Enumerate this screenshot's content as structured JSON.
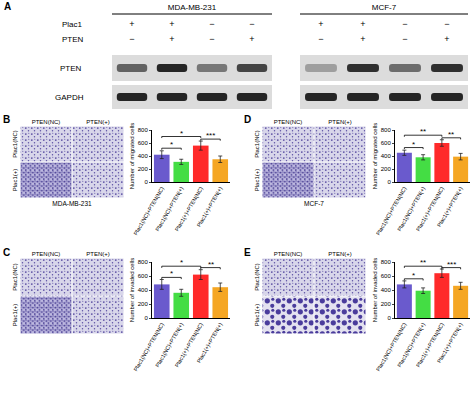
{
  "blot": {
    "panel": "A",
    "row_labels": [
      "Plac1",
      "PTEN"
    ],
    "band_labels": [
      "PTEN",
      "GAPDH"
    ],
    "groups": [
      {
        "name": "MDA-MB-231",
        "Plac1": [
          "+",
          "+",
          "−",
          "−"
        ],
        "PTEN": [
          "−",
          "+",
          "−",
          "+"
        ],
        "PTEN_band": [
          0.6,
          0.9,
          0.5,
          0.75
        ],
        "GAPDH_band": [
          0.9,
          0.9,
          0.9,
          0.9
        ]
      },
      {
        "name": "MCF-7",
        "Plac1": [
          "+",
          "+",
          "−",
          "−"
        ],
        "PTEN": [
          "−",
          "+",
          "−",
          "+"
        ],
        "PTEN_band": [
          0.3,
          0.85,
          0.55,
          0.85
        ],
        "GAPDH_band": [
          0.9,
          0.9,
          0.9,
          0.9
        ]
      }
    ]
  },
  "chart_data": [
    {
      "type": "bar",
      "panel": "B",
      "y_label": "Number of migrated cells",
      "categories": [
        "Plac1(NC)+PTEN(NC)",
        "Plac1(NC)+PTEN(+)",
        "Plac1(+)+PTEN(NC)",
        "Plac1(+)+PTEN(+)"
      ],
      "values": [
        420,
        310,
        560,
        350
      ],
      "errors": [
        60,
        40,
        70,
        50
      ],
      "colors": [
        "#6a5acd",
        "#44dd44",
        "#ff2a2a",
        "#f5a623"
      ],
      "ylim": [
        0,
        800
      ],
      "yticks": [
        0,
        200,
        400,
        600,
        800
      ],
      "significance": [
        {
          "from": 0,
          "to": 1,
          "label": "*",
          "y": 520
        },
        {
          "from": 0,
          "to": 2,
          "label": "*",
          "y": 700
        },
        {
          "from": 2,
          "to": 3,
          "label": "***",
          "y": 660
        }
      ],
      "images": {
        "columns": [
          "PTEN(NC)",
          "PTEN(+)"
        ],
        "rows": [
          "Plac1(NC)",
          "Plac1(+)"
        ],
        "cell_line": "MDA-MB-231"
      }
    },
    {
      "type": "bar",
      "panel": "C",
      "y_label": "Number of invaded cells",
      "categories": [
        "Plac1(NC)+PTEN(NC)",
        "Plac1(NC)+PTEN(+)",
        "Plac1(+)+PTEN(NC)",
        "Plac1(+)+PTEN(+)"
      ],
      "values": [
        480,
        360,
        620,
        440
      ],
      "errors": [
        70,
        50,
        70,
        60
      ],
      "colors": [
        "#6a5acd",
        "#44dd44",
        "#ff2a2a",
        "#f5a623"
      ],
      "ylim": [
        0,
        800
      ],
      "yticks": [
        0,
        200,
        400,
        600,
        800
      ],
      "significance": [
        {
          "from": 0,
          "to": 1,
          "label": "*",
          "y": 580
        },
        {
          "from": 0,
          "to": 2,
          "label": "*",
          "y": 740
        },
        {
          "from": 2,
          "to": 3,
          "label": "**",
          "y": 720
        }
      ],
      "images": {
        "columns": [
          "PTEN(NC)",
          "PTEN(+)"
        ],
        "rows": [
          "Plac1(NC)",
          "Plac1(+)"
        ]
      }
    },
    {
      "type": "bar",
      "panel": "D",
      "y_label": "Number of migrated cells",
      "categories": [
        "Plac1(NC)+PTEN(NC)",
        "Plac1(NC)+PTEN(+)",
        "Plac1(+)+PTEN(NC)",
        "Plac1(+)+PTEN(+)"
      ],
      "values": [
        450,
        380,
        600,
        390
      ],
      "errors": [
        40,
        40,
        50,
        50
      ],
      "colors": [
        "#6a5acd",
        "#44dd44",
        "#ff2a2a",
        "#f5a623"
      ],
      "ylim": [
        0,
        800
      ],
      "yticks": [
        0,
        200,
        400,
        600,
        800
      ],
      "significance": [
        {
          "from": 0,
          "to": 1,
          "label": "*",
          "y": 530
        },
        {
          "from": 0,
          "to": 2,
          "label": "**",
          "y": 720
        },
        {
          "from": 2,
          "to": 3,
          "label": "**",
          "y": 680
        }
      ],
      "images": {
        "columns": [
          "PTEN(NC)",
          "PTEN(+)"
        ],
        "rows": [
          "Plac1(NC)",
          "Plac1(+)"
        ],
        "cell_line": "MCF-7"
      }
    },
    {
      "type": "bar",
      "panel": "E",
      "y_label": "Number of invaded cells",
      "categories": [
        "Plac1(NC)+PTEN(NC)",
        "Plac1(NC)+PTEN(+)",
        "Plac1(+)+PTEN(NC)",
        "Plac1(+)+PTEN(+)"
      ],
      "values": [
        480,
        390,
        640,
        460
      ],
      "errors": [
        50,
        40,
        60,
        50
      ],
      "colors": [
        "#6a5acd",
        "#44dd44",
        "#ff2a2a",
        "#f5a623"
      ],
      "ylim": [
        0,
        800
      ],
      "yticks": [
        0,
        200,
        400,
        600,
        800
      ],
      "significance": [
        {
          "from": 0,
          "to": 1,
          "label": "*",
          "y": 560
        },
        {
          "from": 0,
          "to": 2,
          "label": "**",
          "y": 740
        },
        {
          "from": 2,
          "to": 3,
          "label": "***",
          "y": 720
        }
      ],
      "images": {
        "columns": [
          "PTEN(NC)",
          "PTEN(+)"
        ],
        "rows": [
          "Plac1(NC)",
          "Plac1(+)"
        ]
      }
    }
  ]
}
